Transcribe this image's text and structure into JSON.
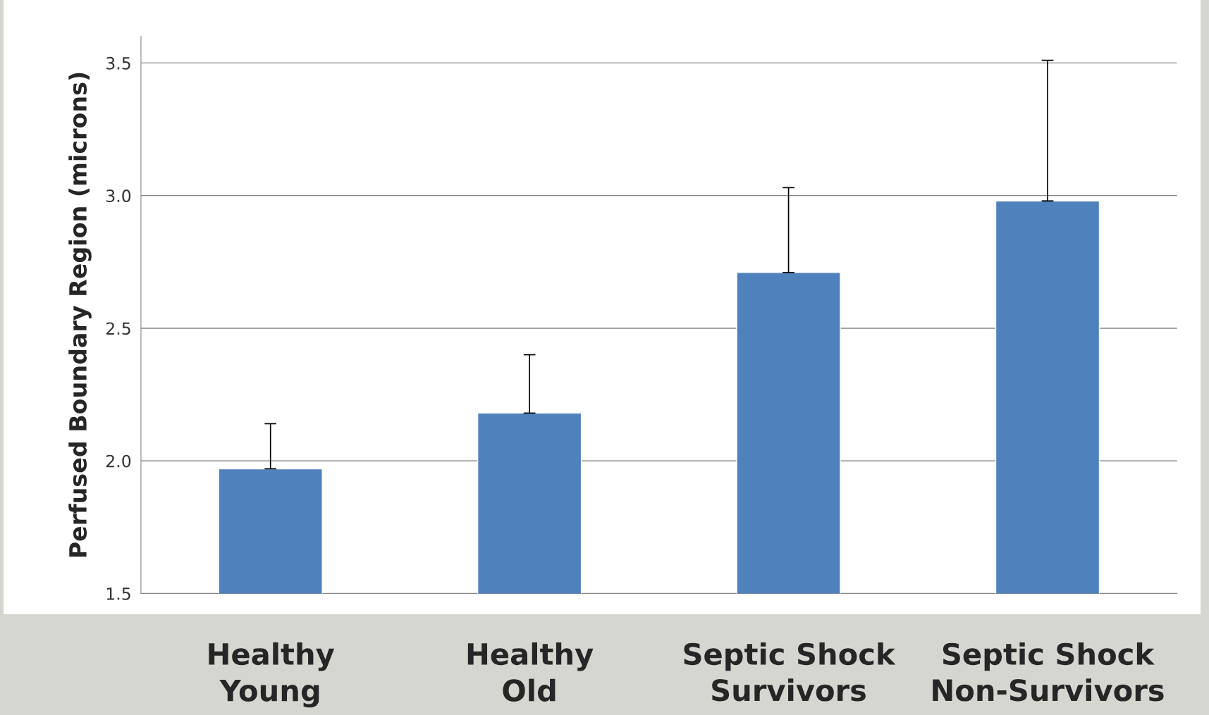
{
  "chart_data": {
    "type": "bar",
    "ylabel": "Perfused Boundary Region (microns)",
    "categories": [
      "Healthy\nYoung",
      "Healthy\nOld",
      "Septic Shock\nSurvivors",
      "Septic Shock\nNon-Survivors"
    ],
    "values": [
      1.97,
      2.18,
      2.71,
      2.98
    ],
    "errors": [
      [
        1.97,
        2.14
      ],
      [
        2.18,
        2.4
      ],
      [
        2.71,
        3.03
      ],
      [
        2.98,
        3.51
      ]
    ],
    "color": "#4f81bd",
    "ylim": [
      1.5,
      3.6
    ],
    "yticks": [
      1.5,
      {
        "value": 2,
        "label": "2.0"
      },
      2.5,
      {
        "value": 3,
        "label": "3.0"
      },
      3.5
    ],
    "grid": "y",
    "legend": false
  }
}
